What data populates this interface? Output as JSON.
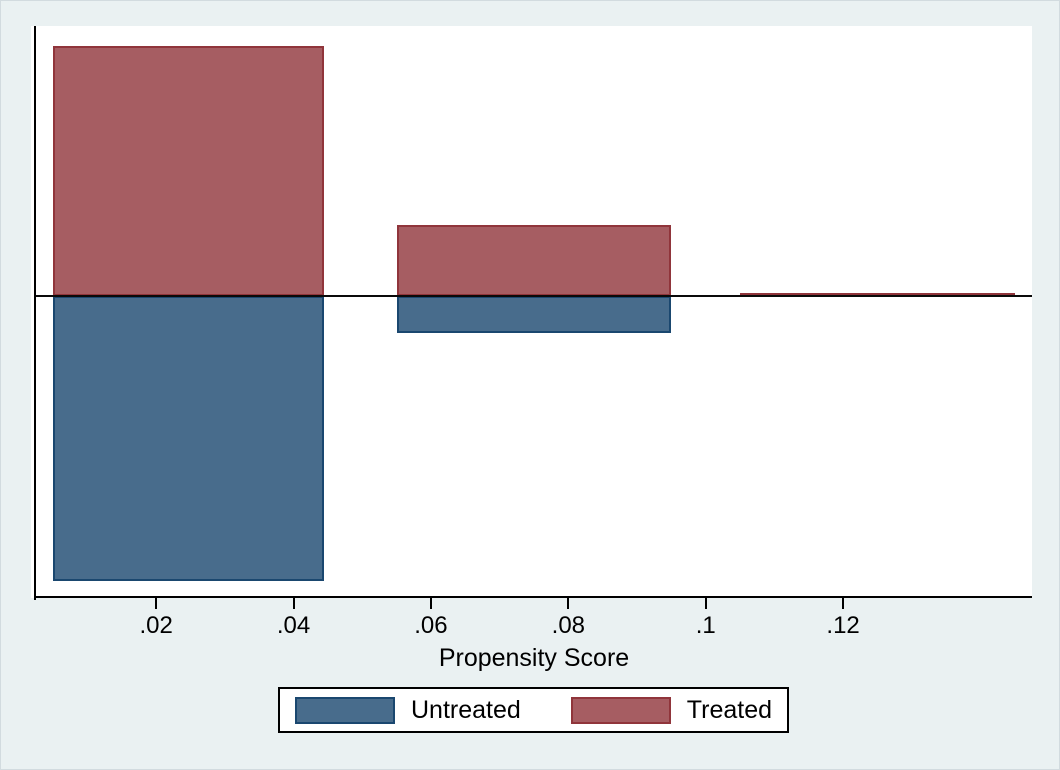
{
  "chart_data": {
    "type": "bar",
    "variant": "propensity-score-overlap-histogram",
    "title": "",
    "xlabel": "Propensity Score",
    "ylabel": "",
    "y_axis_labeled": false,
    "xlim": [
      0.0025,
      0.1475
    ],
    "ylim": [
      -1.06,
      0.95
    ],
    "x_ticks": [
      0.02,
      0.04,
      0.06,
      0.08,
      0.1,
      0.12
    ],
    "x_tick_labels": [
      ".02",
      ".04",
      ".06",
      ".08",
      ".1",
      ".12"
    ],
    "orientation_note": "Treated bars extend upward from the zero line; Untreated bars extend downward. No y-axis scale is shown; heights are relative units normalized to the tallest bar.",
    "bins": [
      {
        "x_start": 0.005,
        "x_end": 0.0445,
        "treated": 0.88,
        "untreated": 1.0
      },
      {
        "x_start": 0.055,
        "x_end": 0.095,
        "treated": 0.25,
        "untreated": 0.13
      },
      {
        "x_start": 0.105,
        "x_end": 0.145,
        "treated": 0.01,
        "untreated": 0.0
      }
    ],
    "legend": {
      "position": "below-plot",
      "entries": [
        {
          "label": "Untreated",
          "fill": "#486c8c",
          "border": "#1a476f"
        },
        {
          "label": "Treated",
          "fill": "#a65d62",
          "border": "#90353b"
        }
      ]
    },
    "colors": {
      "page_background": "#eaf1f2",
      "plot_background": "#ffffff",
      "axis_line": "#000000",
      "treated_fill": "#a65d62",
      "treated_border": "#90353b",
      "untreated_fill": "#486c8c",
      "untreated_border": "#1a476f"
    }
  }
}
